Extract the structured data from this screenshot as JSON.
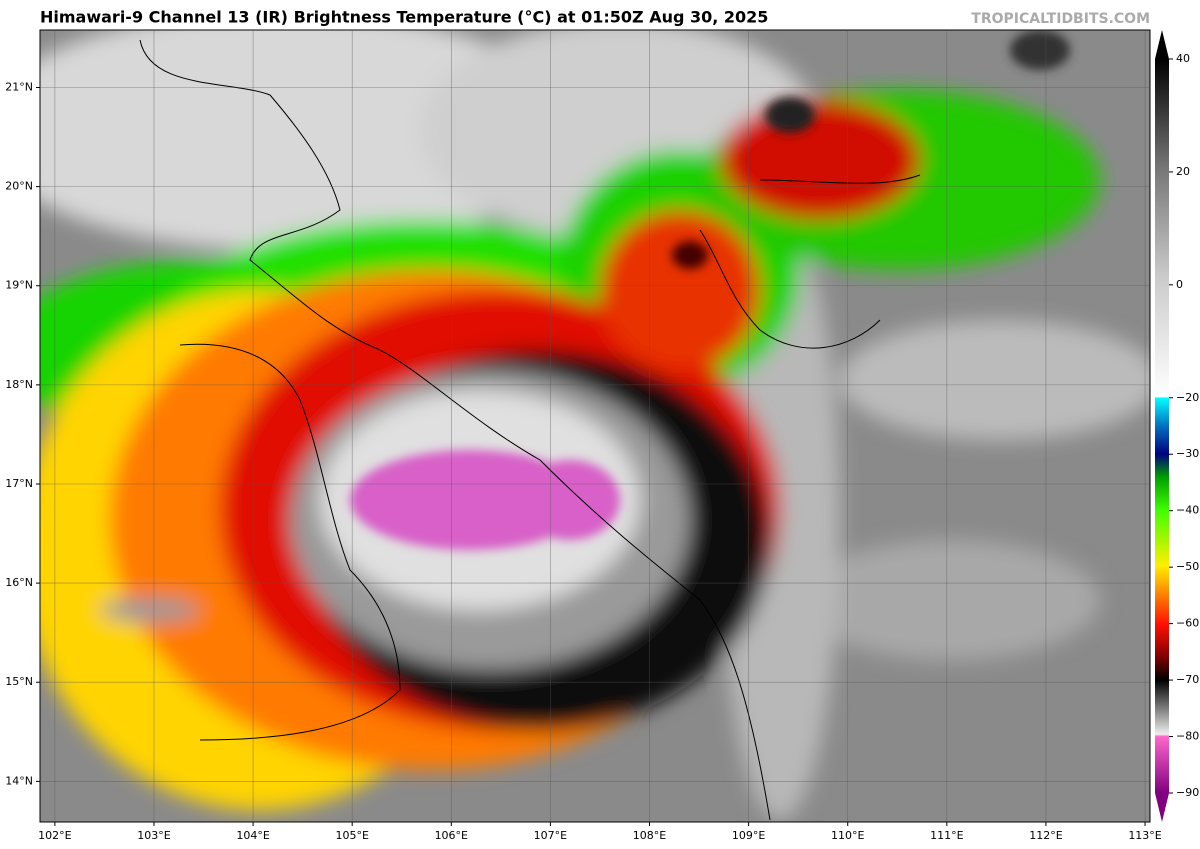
{
  "title": "Himawari-9 Channel 13 (IR) Brightness Temperature (°C) at 01:50Z Aug 30, 2025",
  "watermark": "TROPICALTIDBITS.COM",
  "map": {
    "lon_lim": [
      101.85,
      113.05
    ],
    "lat_lim": [
      13.59,
      21.58
    ],
    "lon_ticks": [
      {
        "value": 102,
        "label": "102°E"
      },
      {
        "value": 103,
        "label": "103°E"
      },
      {
        "value": 104,
        "label": "104°E"
      },
      {
        "value": 105,
        "label": "105°E"
      },
      {
        "value": 106,
        "label": "106°E"
      },
      {
        "value": 107,
        "label": "107°E"
      },
      {
        "value": 108,
        "label": "108°E"
      },
      {
        "value": 109,
        "label": "109°E"
      },
      {
        "value": 110,
        "label": "110°E"
      },
      {
        "value": 111,
        "label": "111°E"
      },
      {
        "value": 112,
        "label": "112°E"
      },
      {
        "value": 113,
        "label": "113°E"
      }
    ],
    "lat_ticks": [
      {
        "value": 14,
        "label": "14°N"
      },
      {
        "value": 15,
        "label": "15°N"
      },
      {
        "value": 16,
        "label": "16°N"
      },
      {
        "value": 17,
        "label": "17°N"
      },
      {
        "value": 18,
        "label": "18°N"
      },
      {
        "value": 19,
        "label": "19°N"
      },
      {
        "value": 20,
        "label": "20°N"
      },
      {
        "value": 21,
        "label": "21°N"
      }
    ]
  },
  "colorbar": {
    "lim": [
      -90,
      40
    ],
    "ticks": [
      40,
      20,
      0,
      {
        "value": -20,
        "label": "−20"
      },
      {
        "value": -30,
        "label": "−30"
      },
      {
        "value": -40,
        "label": "−40"
      },
      {
        "value": -50,
        "label": "−50"
      },
      {
        "value": -60,
        "label": "−60"
      },
      {
        "value": -70,
        "label": "−70"
      },
      {
        "value": -80,
        "label": "−80"
      },
      {
        "value": -90,
        "label": "−90"
      }
    ]
  }
}
